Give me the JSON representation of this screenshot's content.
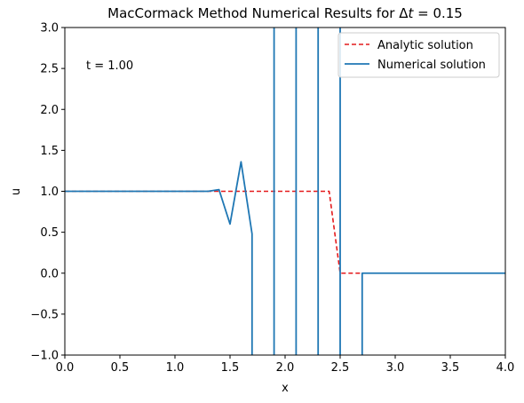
{
  "chart_data": {
    "type": "line",
    "title_prefix": "MacCormack Method Numerical Results for Δ",
    "title_italic": "t",
    "title_suffix": " = 0.15",
    "xlabel": "x",
    "ylabel": "u",
    "xlim": [
      0.0,
      4.0
    ],
    "ylim": [
      -1.0,
      3.0
    ],
    "xticks": [
      "0.0",
      "0.5",
      "1.0",
      "1.5",
      "2.0",
      "2.5",
      "3.0",
      "3.5",
      "4.0"
    ],
    "yticks": [
      "−1.0",
      "−0.5",
      "0.0",
      "0.5",
      "1.0",
      "1.5",
      "2.0",
      "2.5",
      "3.0"
    ],
    "xtick_values": [
      0.0,
      0.5,
      1.0,
      1.5,
      2.0,
      2.5,
      3.0,
      3.5,
      4.0
    ],
    "ytick_values": [
      -1.0,
      -0.5,
      0.0,
      0.5,
      1.0,
      1.5,
      2.0,
      2.5,
      3.0
    ],
    "grid": false,
    "legend_position": "top-right",
    "annotation": "t = 1.00",
    "series": [
      {
        "name": "Analytic solution",
        "color": "#e41a1c",
        "style": "dashed",
        "x": [
          0.0,
          2.4,
          2.5,
          4.0
        ],
        "y": [
          1.0,
          1.0,
          0.0,
          0.0
        ]
      },
      {
        "name": "Numerical solution",
        "color": "#1f77b4",
        "style": "solid",
        "x": [
          0.0,
          1.3,
          1.4,
          1.5,
          1.6,
          1.7,
          1.7,
          1.9,
          1.9,
          2.1,
          2.1,
          2.3,
          2.3,
          2.5,
          2.5,
          2.7,
          2.7,
          4.0
        ],
        "y": [
          1.0,
          1.0,
          1.02,
          0.6,
          1.36,
          0.48,
          -1.1,
          -1.1,
          3.1,
          3.1,
          -1.1,
          -1.1,
          3.1,
          3.1,
          -1.1,
          -1.1,
          0.0,
          0.0
        ]
      }
    ]
  }
}
